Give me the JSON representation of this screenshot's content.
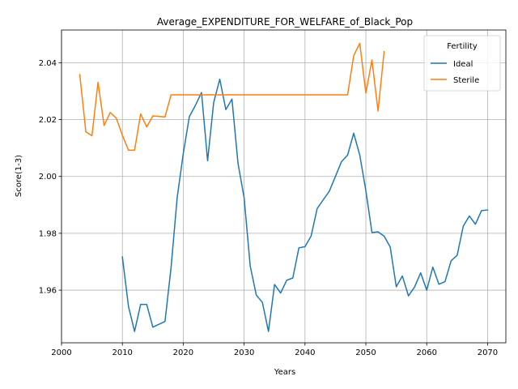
{
  "chart_data": {
    "type": "line",
    "title": "Average_EXPENDITURE_FOR_WELFARE_of_Black_Pop",
    "xlabel": "Years",
    "ylabel": "Score(1-3)",
    "xlim": [
      2000,
      2073
    ],
    "ylim": [
      1.9415,
      2.0515
    ],
    "xticks": [
      2000,
      2010,
      2020,
      2030,
      2040,
      2050,
      2060,
      2070
    ],
    "yticks": [
      1.96,
      1.98,
      2.0,
      2.02,
      2.04
    ],
    "ytick_labels": [
      "1.96",
      "1.98",
      "2.00",
      "2.02",
      "2.04"
    ],
    "grid": true,
    "legend": {
      "title": "Fertility",
      "placement": "top-right"
    },
    "series": [
      {
        "name": "Ideal",
        "color": "#1f77b4",
        "x": [
          2010,
          2011,
          2012,
          2013,
          2014,
          2015,
          2016,
          2017,
          2018,
          2019,
          2020,
          2021,
          2022,
          2023,
          2024,
          2025,
          2026,
          2027,
          2028,
          2029,
          2030,
          2031,
          2032,
          2033,
          2034,
          2035,
          2036,
          2037,
          2038,
          2039,
          2040,
          2041,
          2042,
          2043,
          2044,
          2045,
          2046,
          2047,
          2048,
          2049,
          2050,
          2051,
          2052,
          2053,
          2054,
          2055,
          2056,
          2057,
          2058,
          2059,
          2060,
          2061,
          2062,
          2063,
          2064,
          2065,
          2066,
          2067,
          2068,
          2069,
          2070
        ],
        "y": [
          1.9717,
          1.9543,
          1.9455,
          1.955,
          1.955,
          1.947,
          1.948,
          1.949,
          1.968,
          1.9925,
          2.008,
          2.021,
          2.025,
          2.0295,
          2.0055,
          2.026,
          2.0342,
          2.0235,
          2.0272,
          2.0045,
          1.9925,
          1.9685,
          1.9583,
          1.9557,
          1.9455,
          1.962,
          1.959,
          1.9635,
          1.9643,
          1.9749,
          1.9753,
          1.979,
          1.9887,
          1.9918,
          1.9948,
          2.0,
          2.0052,
          2.0075,
          2.0152,
          2.0075,
          1.995,
          1.9803,
          1.9805,
          1.979,
          1.9752,
          1.9612,
          1.965,
          1.958,
          1.9611,
          1.9661,
          1.96,
          1.9681,
          1.9621,
          1.963,
          1.9703,
          1.9723,
          1.9825,
          1.9861,
          1.9832,
          1.988,
          1.9882
        ]
      },
      {
        "name": "Sterile",
        "color": "#ff7f0e",
        "x": [
          2003,
          2004,
          2005,
          2006,
          2007,
          2008,
          2009,
          2010,
          2011,
          2012,
          2013,
          2014,
          2015,
          2016,
          2017,
          2018,
          2019,
          2020,
          2021,
          2022,
          2023,
          2024,
          2025,
          2026,
          2027,
          2028,
          2029,
          2030,
          2031,
          2032,
          2033,
          2034,
          2035,
          2036,
          2037,
          2038,
          2039,
          2040,
          2041,
          2042,
          2043,
          2044,
          2045,
          2046,
          2047,
          2048,
          2049,
          2050,
          2051,
          2052,
          2053
        ],
        "y": [
          2.0358,
          2.0157,
          2.0143,
          2.0331,
          2.0179,
          2.0225,
          2.0205,
          2.0145,
          2.0092,
          2.0092,
          2.022,
          2.0174,
          2.0213,
          2.0211,
          2.0209,
          2.0287,
          2.0287,
          2.0287,
          2.0287,
          2.0287,
          2.0287,
          2.0287,
          2.0287,
          2.0287,
          2.0287,
          2.0287,
          2.0287,
          2.0287,
          2.0287,
          2.0287,
          2.0287,
          2.0287,
          2.0287,
          2.0287,
          2.0287,
          2.0287,
          2.0287,
          2.0287,
          2.0287,
          2.0287,
          2.0287,
          2.0287,
          2.0287,
          2.0287,
          2.0287,
          2.0425,
          2.0468,
          2.0293,
          2.041,
          2.023,
          2.0439
        ]
      }
    ]
  }
}
